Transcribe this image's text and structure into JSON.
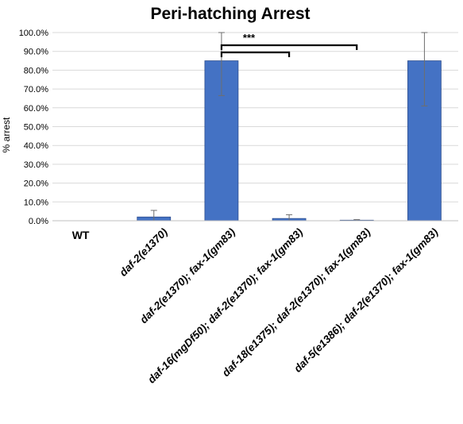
{
  "chart_data": {
    "type": "bar",
    "title": "Peri-hatching Arrest",
    "ylabel": "% arrest",
    "xlabel": "",
    "ylim": [
      0,
      100
    ],
    "ytick_labels": [
      "0.0%",
      "10.0%",
      "20.0%",
      "30.0%",
      "40.0%",
      "50.0%",
      "60.0%",
      "70.0%",
      "80.0%",
      "90.0%",
      "100.0%"
    ],
    "grid": true,
    "categories": [
      "WT",
      "daf-2(e1370)",
      "daf-2(e1370); fax-1(gm83)",
      "daf-16(mgDf50); daf-2(e1370); fax-1(gm83)",
      "daf-18(e1375); daf-2(e1370); fax-1(gm83)",
      "daf-5(e1386); daf-2(e1370); fax-1(gm83)"
    ],
    "values": [
      0,
      2.0,
      85.0,
      1.2,
      0.3,
      85.0
    ],
    "error": [
      0,
      3.5,
      18.5,
      2.0,
      0.3,
      24.0
    ],
    "bar_color": "#4472c4",
    "significance": {
      "label": "***",
      "comparisons": [
        [
          2,
          3
        ],
        [
          2,
          4
        ]
      ]
    }
  }
}
